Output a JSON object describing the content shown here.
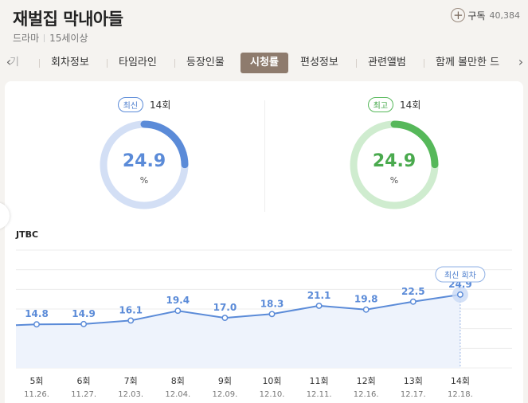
{
  "header": {
    "title": "재벌집 막내아들",
    "genre": "드라마",
    "rating": "15세이상",
    "subscribe_label": "구독",
    "subscribe_count": "40,384"
  },
  "tabs": [
    {
      "label": "기"
    },
    {
      "label": "회차정보"
    },
    {
      "label": "타임라인"
    },
    {
      "label": "등장인물"
    },
    {
      "label": "시청률",
      "active": true
    },
    {
      "label": "편성정보"
    },
    {
      "label": "관련앨범"
    },
    {
      "label": "함께 볼만한 드"
    }
  ],
  "stats": {
    "latest": {
      "badge": "최신",
      "episode": "14회",
      "value": "24.9",
      "unit": "%",
      "fraction": 0.249,
      "color": "#5b8bd8",
      "track": "#d3dff5"
    },
    "best": {
      "badge": "최고",
      "episode": "14회",
      "value": "24.9",
      "unit": "%",
      "fraction": 0.249,
      "color": "#56b85a",
      "track": "#cfeccf"
    }
  },
  "chart": {
    "network": "JTBC",
    "latest_tag": "최신 회차"
  },
  "chart_data": {
    "type": "line",
    "x": [
      "5회",
      "6회",
      "7회",
      "8회",
      "9회",
      "10회",
      "11회",
      "12회",
      "13회",
      "14회"
    ],
    "dates": [
      "11.26.",
      "11.27.",
      "12.03.",
      "12.04.",
      "12.09.",
      "12.10.",
      "12.11.",
      "12.16.",
      "12.17.",
      "12.18."
    ],
    "series": [
      {
        "values": [
          14.8,
          14.9,
          16.1,
          19.4,
          17.0,
          18.3,
          21.1,
          19.8,
          22.5,
          24.9
        ]
      }
    ],
    "ylim": [
      0,
      40
    ],
    "color": "#5b8bd8",
    "grid": true
  }
}
